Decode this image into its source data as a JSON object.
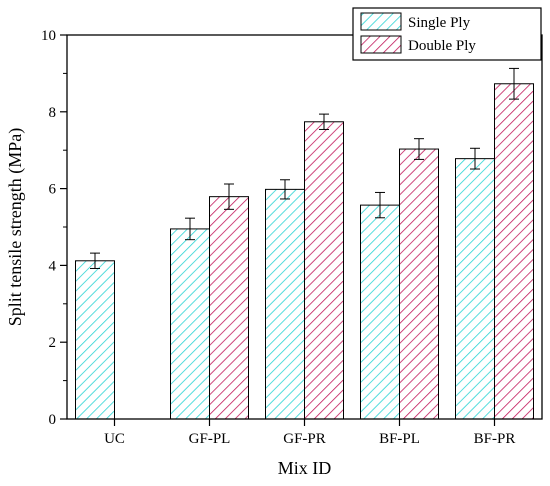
{
  "chart_data": {
    "type": "bar",
    "title": "",
    "xlabel": "Mix ID",
    "ylabel": "Split tensile strength (MPa)",
    "categories": [
      "UC",
      "GF-PL",
      "GF-PR",
      "BF-PL",
      "BF-PR"
    ],
    "ylim": [
      0,
      10
    ],
    "yticks": [
      0,
      2,
      4,
      6,
      8,
      10
    ],
    "grid": false,
    "legend_position": "top-right",
    "series": [
      {
        "name": "Single Ply",
        "color": "#2ad4d4",
        "pattern": "hatch",
        "values": [
          4.12,
          4.95,
          5.98,
          5.57,
          6.78
        ],
        "errors": [
          0.2,
          0.28,
          0.25,
          0.33,
          0.27
        ]
      },
      {
        "name": "Double Ply",
        "color": "#c2185b",
        "pattern": "hatch",
        "values": [
          null,
          5.79,
          7.74,
          7.03,
          8.73
        ],
        "errors": [
          null,
          0.33,
          0.2,
          0.27,
          0.4
        ]
      }
    ]
  }
}
